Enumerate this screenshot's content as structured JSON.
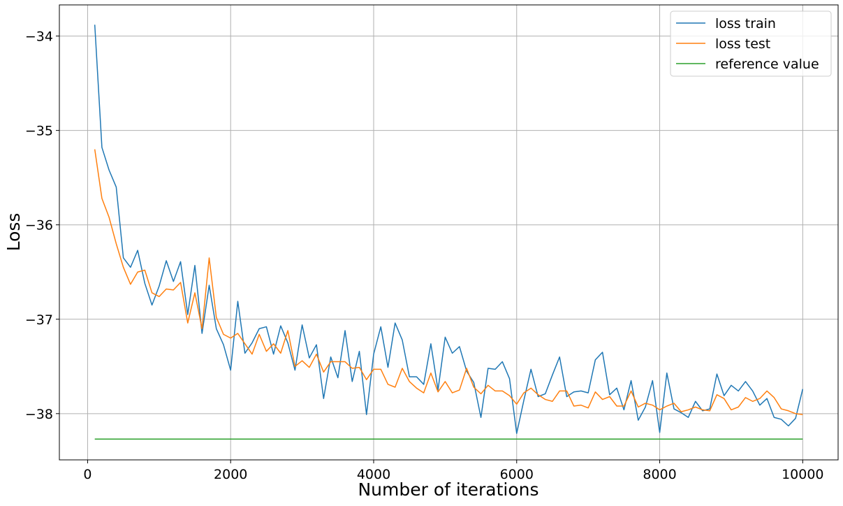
{
  "chart_data": {
    "type": "line",
    "title": "",
    "xlabel": "Number of iterations",
    "ylabel": "Loss",
    "xlim": [
      -395,
      10495
    ],
    "ylim": [
      -38.49,
      -33.67
    ],
    "xticks": [
      0,
      2000,
      4000,
      6000,
      8000,
      10000
    ],
    "xtick_labels": [
      "0",
      "2000",
      "4000",
      "6000",
      "8000",
      "10000"
    ],
    "yticks": [
      -34,
      -35,
      -36,
      -37,
      -38
    ],
    "ytick_labels": [
      "−34",
      "−35",
      "−36",
      "−37",
      "−38"
    ],
    "grid": true,
    "legend_position": "top-right",
    "x": [
      100,
      200,
      300,
      400,
      500,
      600,
      700,
      800,
      900,
      1000,
      1100,
      1200,
      1300,
      1400,
      1500,
      1600,
      1700,
      1800,
      1900,
      2000,
      2100,
      2200,
      2300,
      2400,
      2500,
      2600,
      2700,
      2800,
      2900,
      3000,
      3100,
      3200,
      3300,
      3400,
      3500,
      3600,
      3700,
      3800,
      3900,
      4000,
      4100,
      4200,
      4300,
      4400,
      4500,
      4600,
      4700,
      4800,
      4900,
      5000,
      5100,
      5200,
      5300,
      5400,
      5500,
      5600,
      5700,
      5800,
      5900,
      6000,
      6100,
      6200,
      6300,
      6400,
      6500,
      6600,
      6700,
      6800,
      6900,
      7000,
      7100,
      7200,
      7300,
      7400,
      7500,
      7600,
      7700,
      7800,
      7900,
      8000,
      8100,
      8200,
      8300,
      8400,
      8500,
      8600,
      8700,
      8800,
      8900,
      9000,
      9100,
      9200,
      9300,
      9400,
      9500,
      9600,
      9700,
      9800,
      9900,
      10000
    ],
    "series": [
      {
        "name": "loss train",
        "color": "#1f77b4",
        "values": [
          -33.88,
          -35.18,
          -35.42,
          -35.6,
          -36.35,
          -36.45,
          -36.27,
          -36.62,
          -36.85,
          -36.65,
          -36.38,
          -36.6,
          -36.39,
          -36.95,
          -36.43,
          -37.15,
          -36.64,
          -37.1,
          -37.27,
          -37.54,
          -36.81,
          -37.36,
          -37.25,
          -37.1,
          -37.08,
          -37.37,
          -37.07,
          -37.25,
          -37.54,
          -37.06,
          -37.41,
          -37.27,
          -37.84,
          -37.4,
          -37.62,
          -37.12,
          -37.66,
          -37.34,
          -38.01,
          -37.37,
          -37.08,
          -37.51,
          -37.04,
          -37.22,
          -37.61,
          -37.61,
          -37.69,
          -37.26,
          -37.75,
          -37.19,
          -37.36,
          -37.29,
          -37.55,
          -37.67,
          -38.04,
          -37.52,
          -37.53,
          -37.45,
          -37.63,
          -38.21,
          -37.86,
          -37.53,
          -37.82,
          -37.79,
          -37.59,
          -37.4,
          -37.82,
          -37.77,
          -37.76,
          -37.78,
          -37.43,
          -37.35,
          -37.8,
          -37.73,
          -37.96,
          -37.65,
          -38.07,
          -37.93,
          -37.65,
          -38.2,
          -37.57,
          -37.95,
          -37.99,
          -38.04,
          -37.87,
          -37.97,
          -37.95,
          -37.58,
          -37.81,
          -37.7,
          -37.76,
          -37.66,
          -37.76,
          -37.91,
          -37.84,
          -38.04,
          -38.06,
          -38.13,
          -38.05,
          -37.74
        ]
      },
      {
        "name": "loss test",
        "color": "#ff7f0e",
        "values": [
          -35.2,
          -35.72,
          -35.92,
          -36.2,
          -36.45,
          -36.63,
          -36.5,
          -36.48,
          -36.72,
          -36.76,
          -36.68,
          -36.69,
          -36.61,
          -37.04,
          -36.72,
          -37.1,
          -36.35,
          -36.98,
          -37.16,
          -37.2,
          -37.15,
          -37.26,
          -37.37,
          -37.16,
          -37.34,
          -37.26,
          -37.36,
          -37.12,
          -37.5,
          -37.44,
          -37.51,
          -37.37,
          -37.56,
          -37.45,
          -37.45,
          -37.45,
          -37.52,
          -37.51,
          -37.64,
          -37.53,
          -37.53,
          -37.69,
          -37.72,
          -37.52,
          -37.66,
          -37.73,
          -37.78,
          -37.57,
          -37.77,
          -37.66,
          -37.78,
          -37.75,
          -37.52,
          -37.72,
          -37.79,
          -37.7,
          -37.76,
          -37.76,
          -37.81,
          -37.9,
          -37.78,
          -37.73,
          -37.8,
          -37.85,
          -37.87,
          -37.76,
          -37.76,
          -37.92,
          -37.91,
          -37.94,
          -37.77,
          -37.85,
          -37.82,
          -37.92,
          -37.92,
          -37.76,
          -37.93,
          -37.89,
          -37.91,
          -37.96,
          -37.92,
          -37.89,
          -37.98,
          -37.96,
          -37.93,
          -37.96,
          -37.97,
          -37.8,
          -37.84,
          -37.96,
          -37.93,
          -37.83,
          -37.87,
          -37.84,
          -37.76,
          -37.83,
          -37.95,
          -37.97,
          -38.0,
          -38.01
        ]
      },
      {
        "name": "reference value",
        "color": "#2ca02c",
        "constant": -38.27,
        "x_range": [
          100,
          10000
        ]
      }
    ]
  }
}
